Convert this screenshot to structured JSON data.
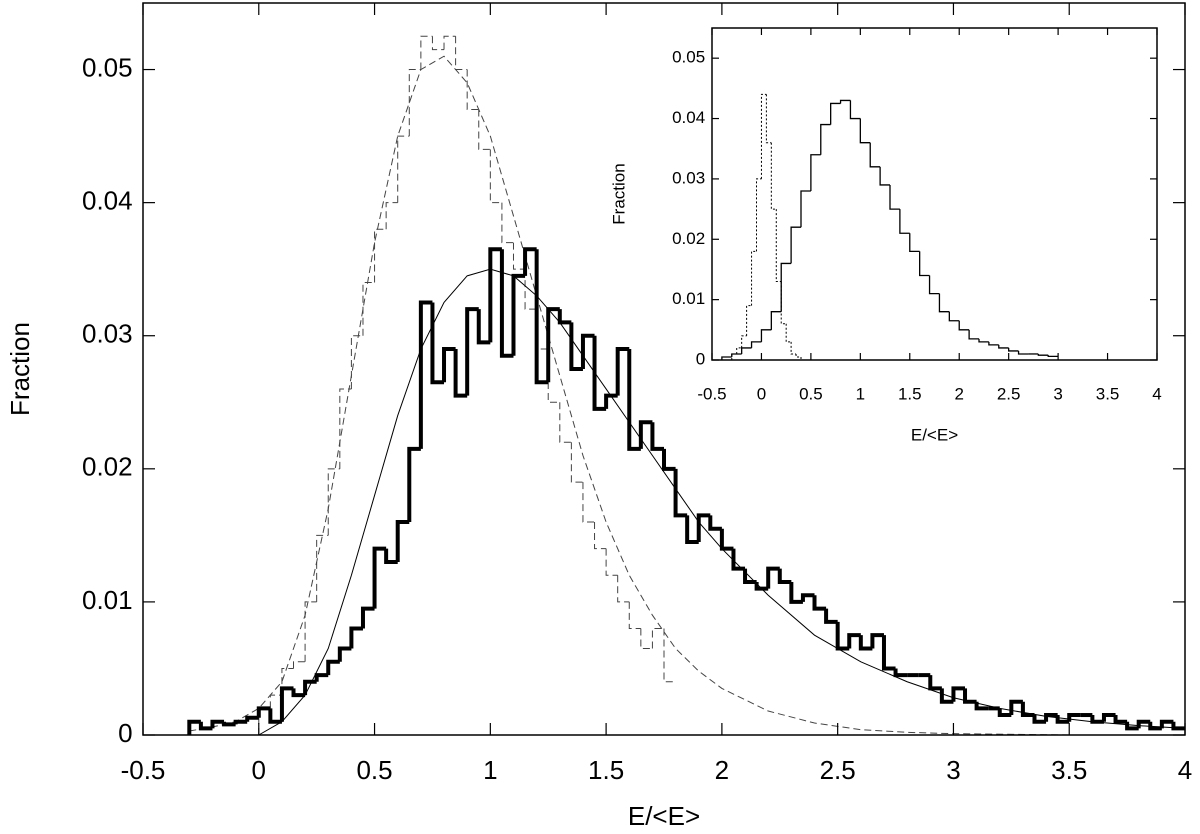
{
  "chart_data": [
    {
      "type": "histogram",
      "xlabel": "E/<E>",
      "ylabel": "Fraction",
      "xlim": [
        -0.5,
        4
      ],
      "ylim": [
        0,
        0.055
      ],
      "xticks": [
        -0.5,
        0,
        0.5,
        1,
        1.5,
        2,
        2.5,
        3,
        3.5,
        4
      ],
      "yticks": [
        0,
        0.01,
        0.02,
        0.03,
        0.04,
        0.05
      ],
      "series": [
        {
          "type": "line",
          "color": "#444444",
          "style": "dashed",
          "linewidth": 1,
          "x": [
            -0.3,
            -0.2,
            -0.1,
            0,
            0.1,
            0.2,
            0.3,
            0.4,
            0.5,
            0.6,
            0.7,
            0.8,
            0.9,
            1.0,
            1.1,
            1.2,
            1.3,
            1.4,
            1.5,
            1.6,
            1.7,
            1.8,
            1.9,
            2.0,
            2.2,
            2.4,
            2.6,
            2.8,
            3.0,
            3.5,
            4.0
          ],
          "values": [
            0.0003,
            0.0006,
            0.001,
            0.002,
            0.004,
            0.009,
            0.017,
            0.027,
            0.037,
            0.045,
            0.05,
            0.051,
            0.049,
            0.045,
            0.039,
            0.033,
            0.027,
            0.021,
            0.016,
            0.012,
            0.009,
            0.0065,
            0.0048,
            0.0035,
            0.0018,
            0.0009,
            0.0004,
            0.0002,
            0.0001,
            0,
            0
          ]
        },
        {
          "type": "histogram",
          "color": "#444444",
          "style": "dashed",
          "linewidth": 1,
          "bins": [
            0,
            0.05,
            0.1,
            0.15,
            0.2,
            0.25,
            0.3,
            0.35,
            0.4,
            0.45,
            0.5,
            0.55,
            0.6,
            0.65,
            0.7,
            0.75,
            0.8,
            0.85,
            0.9,
            0.95,
            1.0,
            1.05,
            1.1,
            1.15,
            1.2,
            1.25,
            1.3,
            1.35,
            1.4,
            1.45,
            1.5,
            1.55,
            1.6,
            1.65,
            1.7,
            1.75,
            1.8
          ],
          "values": [
            0.002,
            0.003,
            0.005,
            0.0055,
            0.01,
            0.015,
            0.02,
            0.026,
            0.03,
            0.034,
            0.038,
            0.04,
            0.045,
            0.05,
            0.0525,
            0.0515,
            0.0525,
            0.05,
            0.047,
            0.044,
            0.04,
            0.037,
            0.035,
            0.032,
            0.029,
            0.025,
            0.022,
            0.019,
            0.016,
            0.014,
            0.012,
            0.01,
            0.008,
            0.0065,
            0.008,
            0.004
          ]
        },
        {
          "type": "line",
          "color": "#000000",
          "style": "solid",
          "linewidth": 1,
          "x": [
            0,
            0.1,
            0.2,
            0.3,
            0.4,
            0.5,
            0.6,
            0.7,
            0.8,
            0.9,
            1.0,
            1.1,
            1.2,
            1.3,
            1.4,
            1.5,
            1.6,
            1.7,
            1.8,
            1.9,
            2.0,
            2.2,
            2.4,
            2.6,
            2.8,
            3.0,
            3.2,
            3.4,
            3.6,
            3.8,
            4.0
          ],
          "values": [
            0,
            0.001,
            0.003,
            0.0065,
            0.012,
            0.018,
            0.024,
            0.029,
            0.0325,
            0.0345,
            0.035,
            0.0345,
            0.033,
            0.031,
            0.0285,
            0.026,
            0.0235,
            0.021,
            0.0185,
            0.016,
            0.014,
            0.0105,
            0.0075,
            0.0055,
            0.004,
            0.0028,
            0.002,
            0.0014,
            0.001,
            0.0007,
            0.0005
          ]
        },
        {
          "type": "histogram",
          "color": "#000000",
          "style": "solid",
          "linewidth": 4,
          "bins": [
            -0.3,
            -0.25,
            -0.2,
            -0.15,
            -0.1,
            -0.05,
            0,
            0.05,
            0.1,
            0.15,
            0.2,
            0.25,
            0.3,
            0.35,
            0.4,
            0.45,
            0.5,
            0.55,
            0.6,
            0.65,
            0.7,
            0.75,
            0.8,
            0.85,
            0.9,
            0.95,
            1.0,
            1.05,
            1.1,
            1.15,
            1.2,
            1.25,
            1.3,
            1.35,
            1.4,
            1.45,
            1.5,
            1.55,
            1.6,
            1.65,
            1.7,
            1.75,
            1.8,
            1.85,
            1.9,
            1.95,
            2.0,
            2.05,
            2.1,
            2.15,
            2.2,
            2.25,
            2.3,
            2.35,
            2.4,
            2.45,
            2.5,
            2.55,
            2.6,
            2.65,
            2.7,
            2.75,
            2.8,
            2.85,
            2.9,
            2.95,
            3.0,
            3.05,
            3.1,
            3.15,
            3.2,
            3.25,
            3.3,
            3.35,
            3.4,
            3.45,
            3.5,
            3.55,
            3.6,
            3.65,
            3.7,
            3.75,
            3.8,
            3.85,
            3.9,
            3.95,
            4.0
          ],
          "values": [
            0.001,
            0.0005,
            0.001,
            0.0008,
            0.001,
            0.0013,
            0.002,
            0.001,
            0.0035,
            0.003,
            0.004,
            0.0045,
            0.0055,
            0.0065,
            0.008,
            0.0095,
            0.014,
            0.013,
            0.016,
            0.0215,
            0.0325,
            0.0265,
            0.029,
            0.0255,
            0.032,
            0.0295,
            0.0365,
            0.0285,
            0.0345,
            0.0365,
            0.0265,
            0.032,
            0.031,
            0.0275,
            0.03,
            0.0245,
            0.0255,
            0.029,
            0.0215,
            0.0235,
            0.0215,
            0.02,
            0.0165,
            0.0145,
            0.0165,
            0.0155,
            0.014,
            0.0125,
            0.0115,
            0.011,
            0.0125,
            0.0115,
            0.01,
            0.0105,
            0.0095,
            0.0085,
            0.0065,
            0.0075,
            0.0065,
            0.0075,
            0.005,
            0.0045,
            0.0045,
            0.0045,
            0.0035,
            0.0025,
            0.0035,
            0.0025,
            0.002,
            0.002,
            0.0015,
            0.0025,
            0.0015,
            0.001,
            0.0015,
            0.001,
            0.0015,
            0.0015,
            0.001,
            0.0015,
            0.001,
            0.0005,
            0.001,
            0.0005,
            0.001,
            0.0005
          ]
        }
      ]
    },
    {
      "type": "histogram",
      "xlabel": "E/<E>",
      "ylabel": "Fraction",
      "xlim": [
        -0.5,
        4
      ],
      "ylim": [
        0,
        0.055
      ],
      "xticks": [
        -0.5,
        0,
        0.5,
        1,
        1.5,
        2,
        2.5,
        3,
        3.5,
        4
      ],
      "yticks": [
        0,
        0.01,
        0.02,
        0.03,
        0.04,
        0.05
      ],
      "series": [
        {
          "type": "histogram",
          "color": "#000000",
          "style": "dotted",
          "linewidth": 1,
          "bins": [
            -0.3,
            -0.25,
            -0.2,
            -0.15,
            -0.1,
            -0.05,
            0,
            0.05,
            0.1,
            0.15,
            0.2,
            0.25,
            0.3,
            0.35,
            0.4,
            0.45
          ],
          "values": [
            0.001,
            0.002,
            0.004,
            0.009,
            0.018,
            0.03,
            0.044,
            0.036,
            0.025,
            0.013,
            0.006,
            0.003,
            0.001,
            0.0005,
            0
          ]
        },
        {
          "type": "histogram",
          "color": "#000000",
          "style": "solid",
          "linewidth": 1.3,
          "bins": [
            -0.4,
            -0.3,
            -0.2,
            -0.1,
            0,
            0.1,
            0.2,
            0.3,
            0.4,
            0.5,
            0.6,
            0.7,
            0.8,
            0.9,
            1.0,
            1.1,
            1.2,
            1.3,
            1.4,
            1.5,
            1.6,
            1.7,
            1.8,
            1.9,
            2.0,
            2.1,
            2.2,
            2.3,
            2.4,
            2.5,
            2.6,
            2.7,
            2.8,
            2.9,
            3.0
          ],
          "values": [
            0.0005,
            0.001,
            0.002,
            0.003,
            0.005,
            0.008,
            0.016,
            0.022,
            0.028,
            0.034,
            0.039,
            0.0425,
            0.043,
            0.04,
            0.036,
            0.032,
            0.029,
            0.025,
            0.021,
            0.018,
            0.014,
            0.011,
            0.008,
            0.0065,
            0.005,
            0.0035,
            0.003,
            0.0025,
            0.002,
            0.0015,
            0.001,
            0.001,
            0.0008,
            0.0006
          ]
        }
      ]
    }
  ]
}
